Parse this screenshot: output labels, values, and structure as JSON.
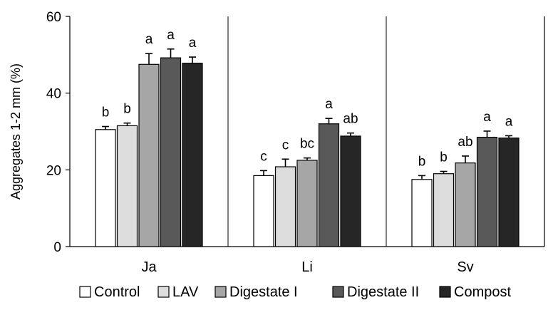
{
  "chart_data": {
    "type": "bar",
    "title": "",
    "xlabel": "",
    "ylabel": "Aggregates 1-2 mm (%)",
    "ylim": [
      0,
      60
    ],
    "yticks": [
      0,
      20,
      40,
      60
    ],
    "grid": false,
    "legend_position": "bottom",
    "categories": [
      "Ja",
      "Li",
      "Sv"
    ],
    "series": [
      {
        "name": "Control",
        "color": "#ffffff",
        "values": [
          30.5,
          18.5,
          17.5
        ],
        "errors": [
          0.8,
          1.3,
          1.0
        ],
        "letters": [
          "b",
          "c",
          "b"
        ]
      },
      {
        "name": "LAV",
        "color": "#dddddd",
        "values": [
          31.5,
          20.8,
          19.0
        ],
        "errors": [
          0.7,
          2.0,
          0.6
        ],
        "letters": [
          "b",
          "c",
          "b"
        ]
      },
      {
        "name": "Digestate I",
        "color": "#a6a6a6",
        "values": [
          47.5,
          22.5,
          21.8
        ],
        "errors": [
          2.8,
          0.6,
          1.8
        ],
        "letters": [
          "a",
          "bc",
          "ab"
        ]
      },
      {
        "name": "Digestate II",
        "color": "#595959",
        "values": [
          49.2,
          32.0,
          28.5
        ],
        "errors": [
          2.3,
          1.4,
          1.6
        ],
        "letters": [
          "a",
          "a",
          "a"
        ]
      },
      {
        "name": "Compost",
        "color": "#262626",
        "values": [
          47.8,
          28.8,
          28.3
        ],
        "errors": [
          1.6,
          0.8,
          0.6
        ],
        "letters": [
          "a",
          "ab",
          "a"
        ]
      }
    ]
  }
}
